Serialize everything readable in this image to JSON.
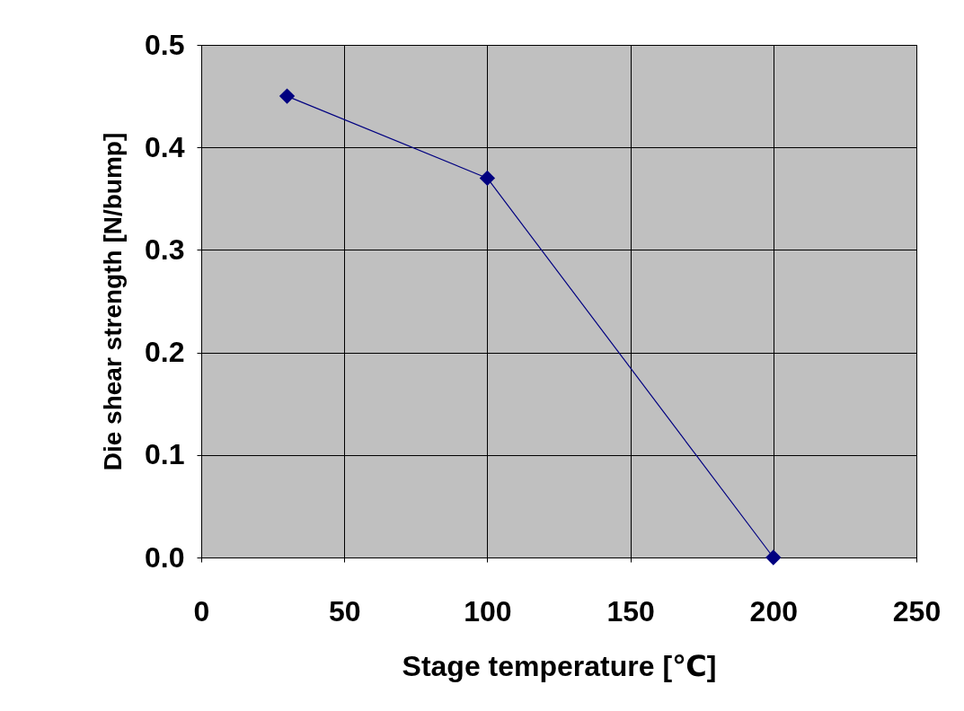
{
  "chart_data": {
    "type": "line",
    "xlabel": "Stage temperature [℃]",
    "ylabel": "Die shear strength [N/bump]",
    "x": [
      30,
      100,
      200
    ],
    "series": [
      {
        "color": "#000080",
        "values": [
          0.45,
          0.37,
          0
        ]
      }
    ],
    "xlim": [
      0,
      250
    ],
    "xticks": [
      0,
      50,
      100,
      150,
      200,
      250
    ],
    "ylim": [
      0,
      0.5
    ],
    "yticks": [
      {
        "value": 0,
        "label": "0.0"
      },
      0.1,
      0.2,
      0.3,
      0.4,
      0.5
    ],
    "grid": true,
    "marker": "diamond",
    "line_style": "solid"
  }
}
